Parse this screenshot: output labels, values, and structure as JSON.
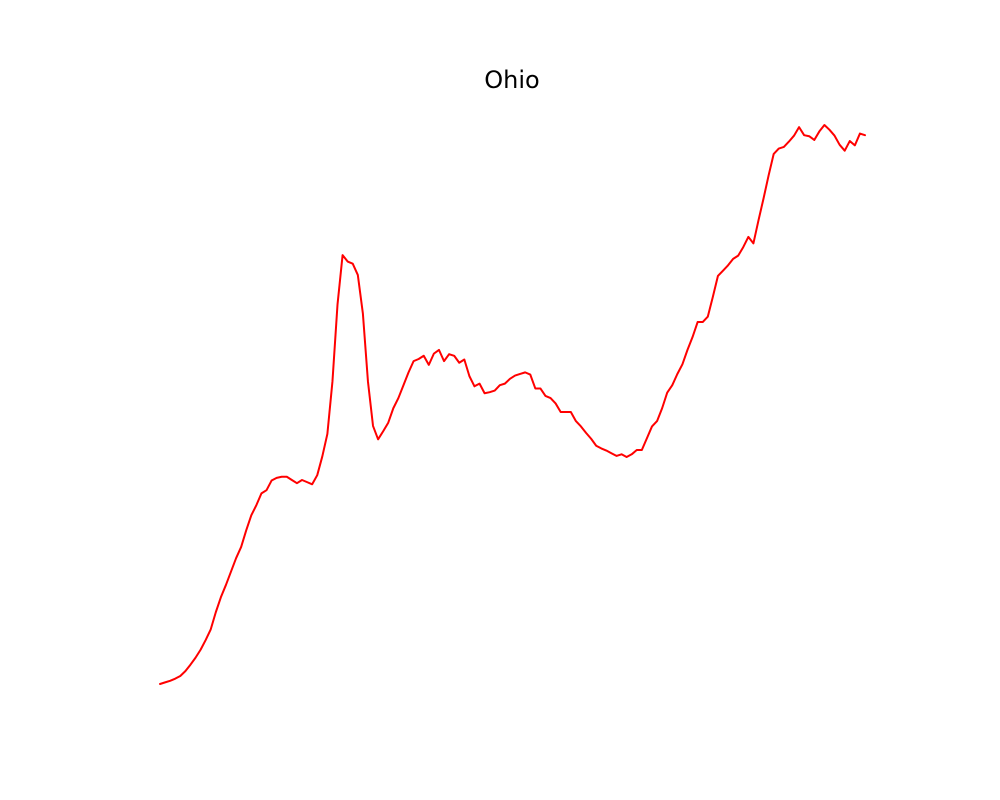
{
  "chart_data": {
    "type": "line",
    "title": "Ohio",
    "xlabel": "",
    "ylabel": "",
    "axes_visible": false,
    "grid": false,
    "legend": "none",
    "ylim": [
      0,
      100
    ],
    "series": [
      {
        "color": "#ff0000",
        "y": [
          0.0,
          0.3,
          0.6,
          1.0,
          1.5,
          2.4,
          3.6,
          4.9,
          6.4,
          8.2,
          10.2,
          13.4,
          16.2,
          18.5,
          21.0,
          23.5,
          25.6,
          28.7,
          31.5,
          33.4,
          35.6,
          36.2,
          38.0,
          38.5,
          38.7,
          38.7,
          38.1,
          37.5,
          38.1,
          37.7,
          37.3,
          39.0,
          42.5,
          46.7,
          56.5,
          70.9,
          80.1,
          78.9,
          78.5,
          76.4,
          69.2,
          56.5,
          48.2,
          45.7,
          47.2,
          48.8,
          51.5,
          53.4,
          55.8,
          58.2,
          60.3,
          60.7,
          61.3,
          59.6,
          61.7,
          62.4,
          60.3,
          61.6,
          61.3,
          60.0,
          60.6,
          57.5,
          55.6,
          56.1,
          54.3,
          54.5,
          54.8,
          55.8,
          56.1,
          57.0,
          57.6,
          57.9,
          58.2,
          57.8,
          55.2,
          55.2,
          53.8,
          53.4,
          52.4,
          50.8,
          50.8,
          50.8,
          49.1,
          48.1,
          46.9,
          45.8,
          44.5,
          44.0,
          43.6,
          43.1,
          42.6,
          42.9,
          42.4,
          42.9,
          43.7,
          43.7,
          45.9,
          48.1,
          49.1,
          51.5,
          54.4,
          55.8,
          57.9,
          59.7,
          62.4,
          64.8,
          67.6,
          67.6,
          68.6,
          72.3,
          76.2,
          77.2,
          78.2,
          79.4,
          80.0,
          81.6,
          83.5,
          82.3,
          86.6,
          90.7,
          95.0,
          99.0,
          100.0,
          100.3,
          101.3,
          102.4,
          104.0,
          102.5,
          102.3,
          101.6,
          103.2,
          104.4,
          103.5,
          102.4,
          100.7,
          99.6,
          101.4,
          100.6,
          102.8,
          102.5
        ]
      }
    ]
  }
}
